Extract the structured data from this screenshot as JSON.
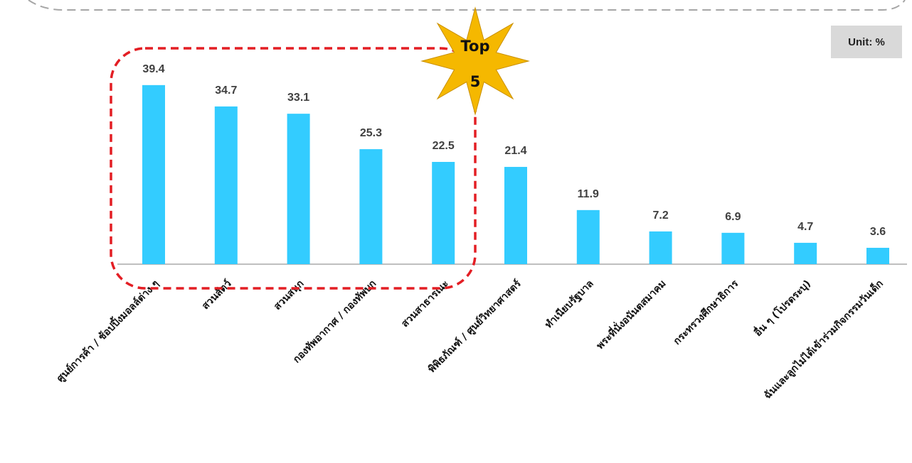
{
  "unit_label": "Unit: %",
  "badge": {
    "line1": "Top",
    "line2": "5",
    "fill": "#f5b800",
    "text_color": "#111111"
  },
  "highlight": {
    "count": 5,
    "color": "#e31e24"
  },
  "colors": {
    "bar": "#33ccff",
    "label": "#404040",
    "axis": "#7f7f7f",
    "frame": "#a6a6a6"
  },
  "chart_data": {
    "type": "bar",
    "categories": [
      "ศูนย์การค้า / ช้อปปิ้งมอลล์ต่าง ๆ",
      "สวนสัตว์",
      "สวนสนุก",
      "กองทัพอากาศ / กองทัพบก",
      "สวนสาธารณะ",
      "พิพิธภัณฑ์ / ศูนย์วิทยาศาสตร์",
      "ทำเนียบรัฐบาล",
      "พระที่นั่งอนันตสมาคม",
      "กระทรวงศึกษาธิการ",
      "อื่น ๆ (โปรดระบุ)",
      "ฉันและลูกไม่ได้เข้าร่วมกิจกรรมวันเด็ก"
    ],
    "values": [
      39.4,
      34.7,
      33.1,
      25.3,
      22.5,
      21.4,
      11.9,
      7.2,
      6.9,
      4.7,
      3.6
    ],
    "value_labels": [
      "39.4",
      "34.7",
      "33.1",
      "25.3",
      "22.5",
      "21.4",
      "11.9",
      "7.2",
      "6.9",
      "4.7",
      "3.6"
    ],
    "ylim": [
      0,
      40
    ],
    "grid": false,
    "legend": "none"
  }
}
